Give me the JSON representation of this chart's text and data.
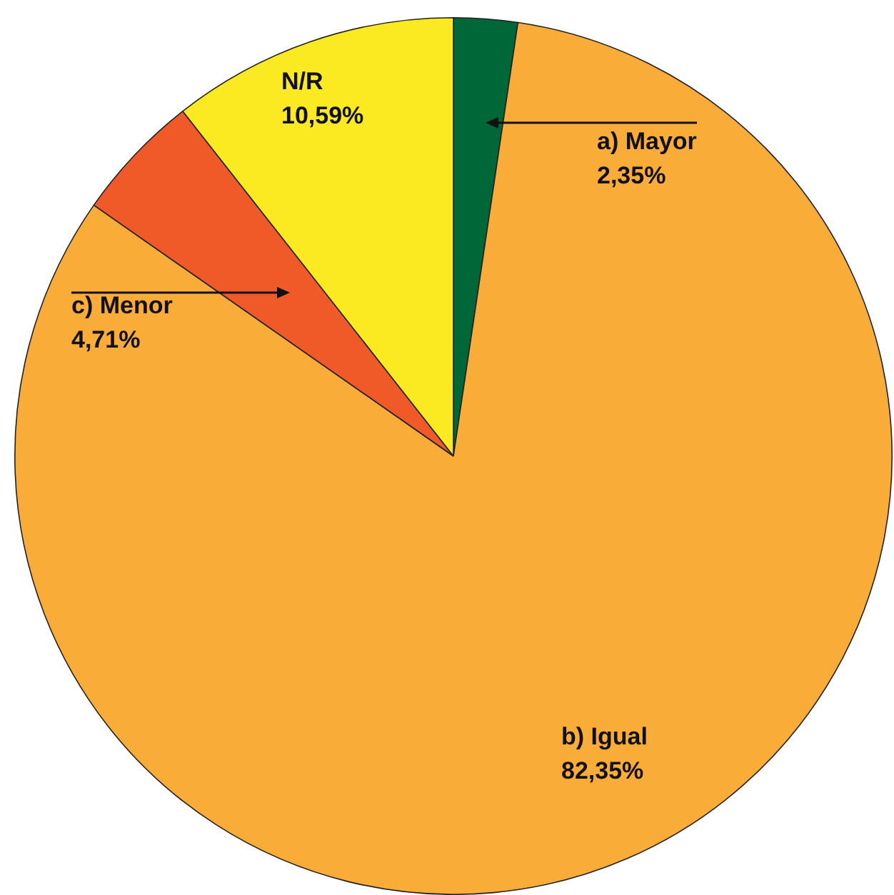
{
  "chart_data": {
    "type": "pie",
    "categories": [
      "a) Mayor",
      "b) Igual",
      "c) Menor",
      "N/R"
    ],
    "values": [
      2.35,
      82.35,
      4.71,
      10.59
    ],
    "value_labels": [
      "2,35%",
      "82,35%",
      "4,71%",
      "10,59%"
    ],
    "colors": [
      "#006838",
      "#f9ac37",
      "#f05a28",
      "#fbe922"
    ]
  }
}
